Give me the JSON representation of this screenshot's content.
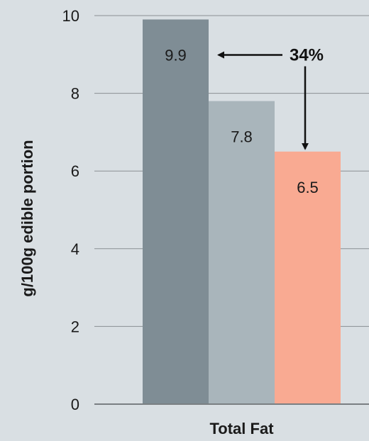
{
  "chart_data": {
    "type": "bar",
    "categories": [
      "Total Fat"
    ],
    "series": [
      {
        "values": [
          9.9
        ],
        "color": "#7f8d95"
      },
      {
        "values": [
          7.8
        ],
        "color": "#a9b5bb"
      },
      {
        "values": [
          6.5
        ],
        "color": "#f9aa92"
      }
    ],
    "data_labels": [
      "9.9",
      "7.8",
      "6.5"
    ],
    "ylabel": "g/100g edible portion",
    "xlabel": "Total Fat",
    "ylim": [
      0,
      10
    ],
    "yticks": [
      0,
      2,
      4,
      6,
      8,
      10
    ],
    "grid": true,
    "annotation": {
      "text": "34%",
      "from_value": 9.9,
      "to_value": 6.5
    }
  },
  "colors": {
    "background": "#d9dfe3",
    "gridline": "#8a8f93",
    "axis": "#7a7f83",
    "arrow": "#111111"
  }
}
